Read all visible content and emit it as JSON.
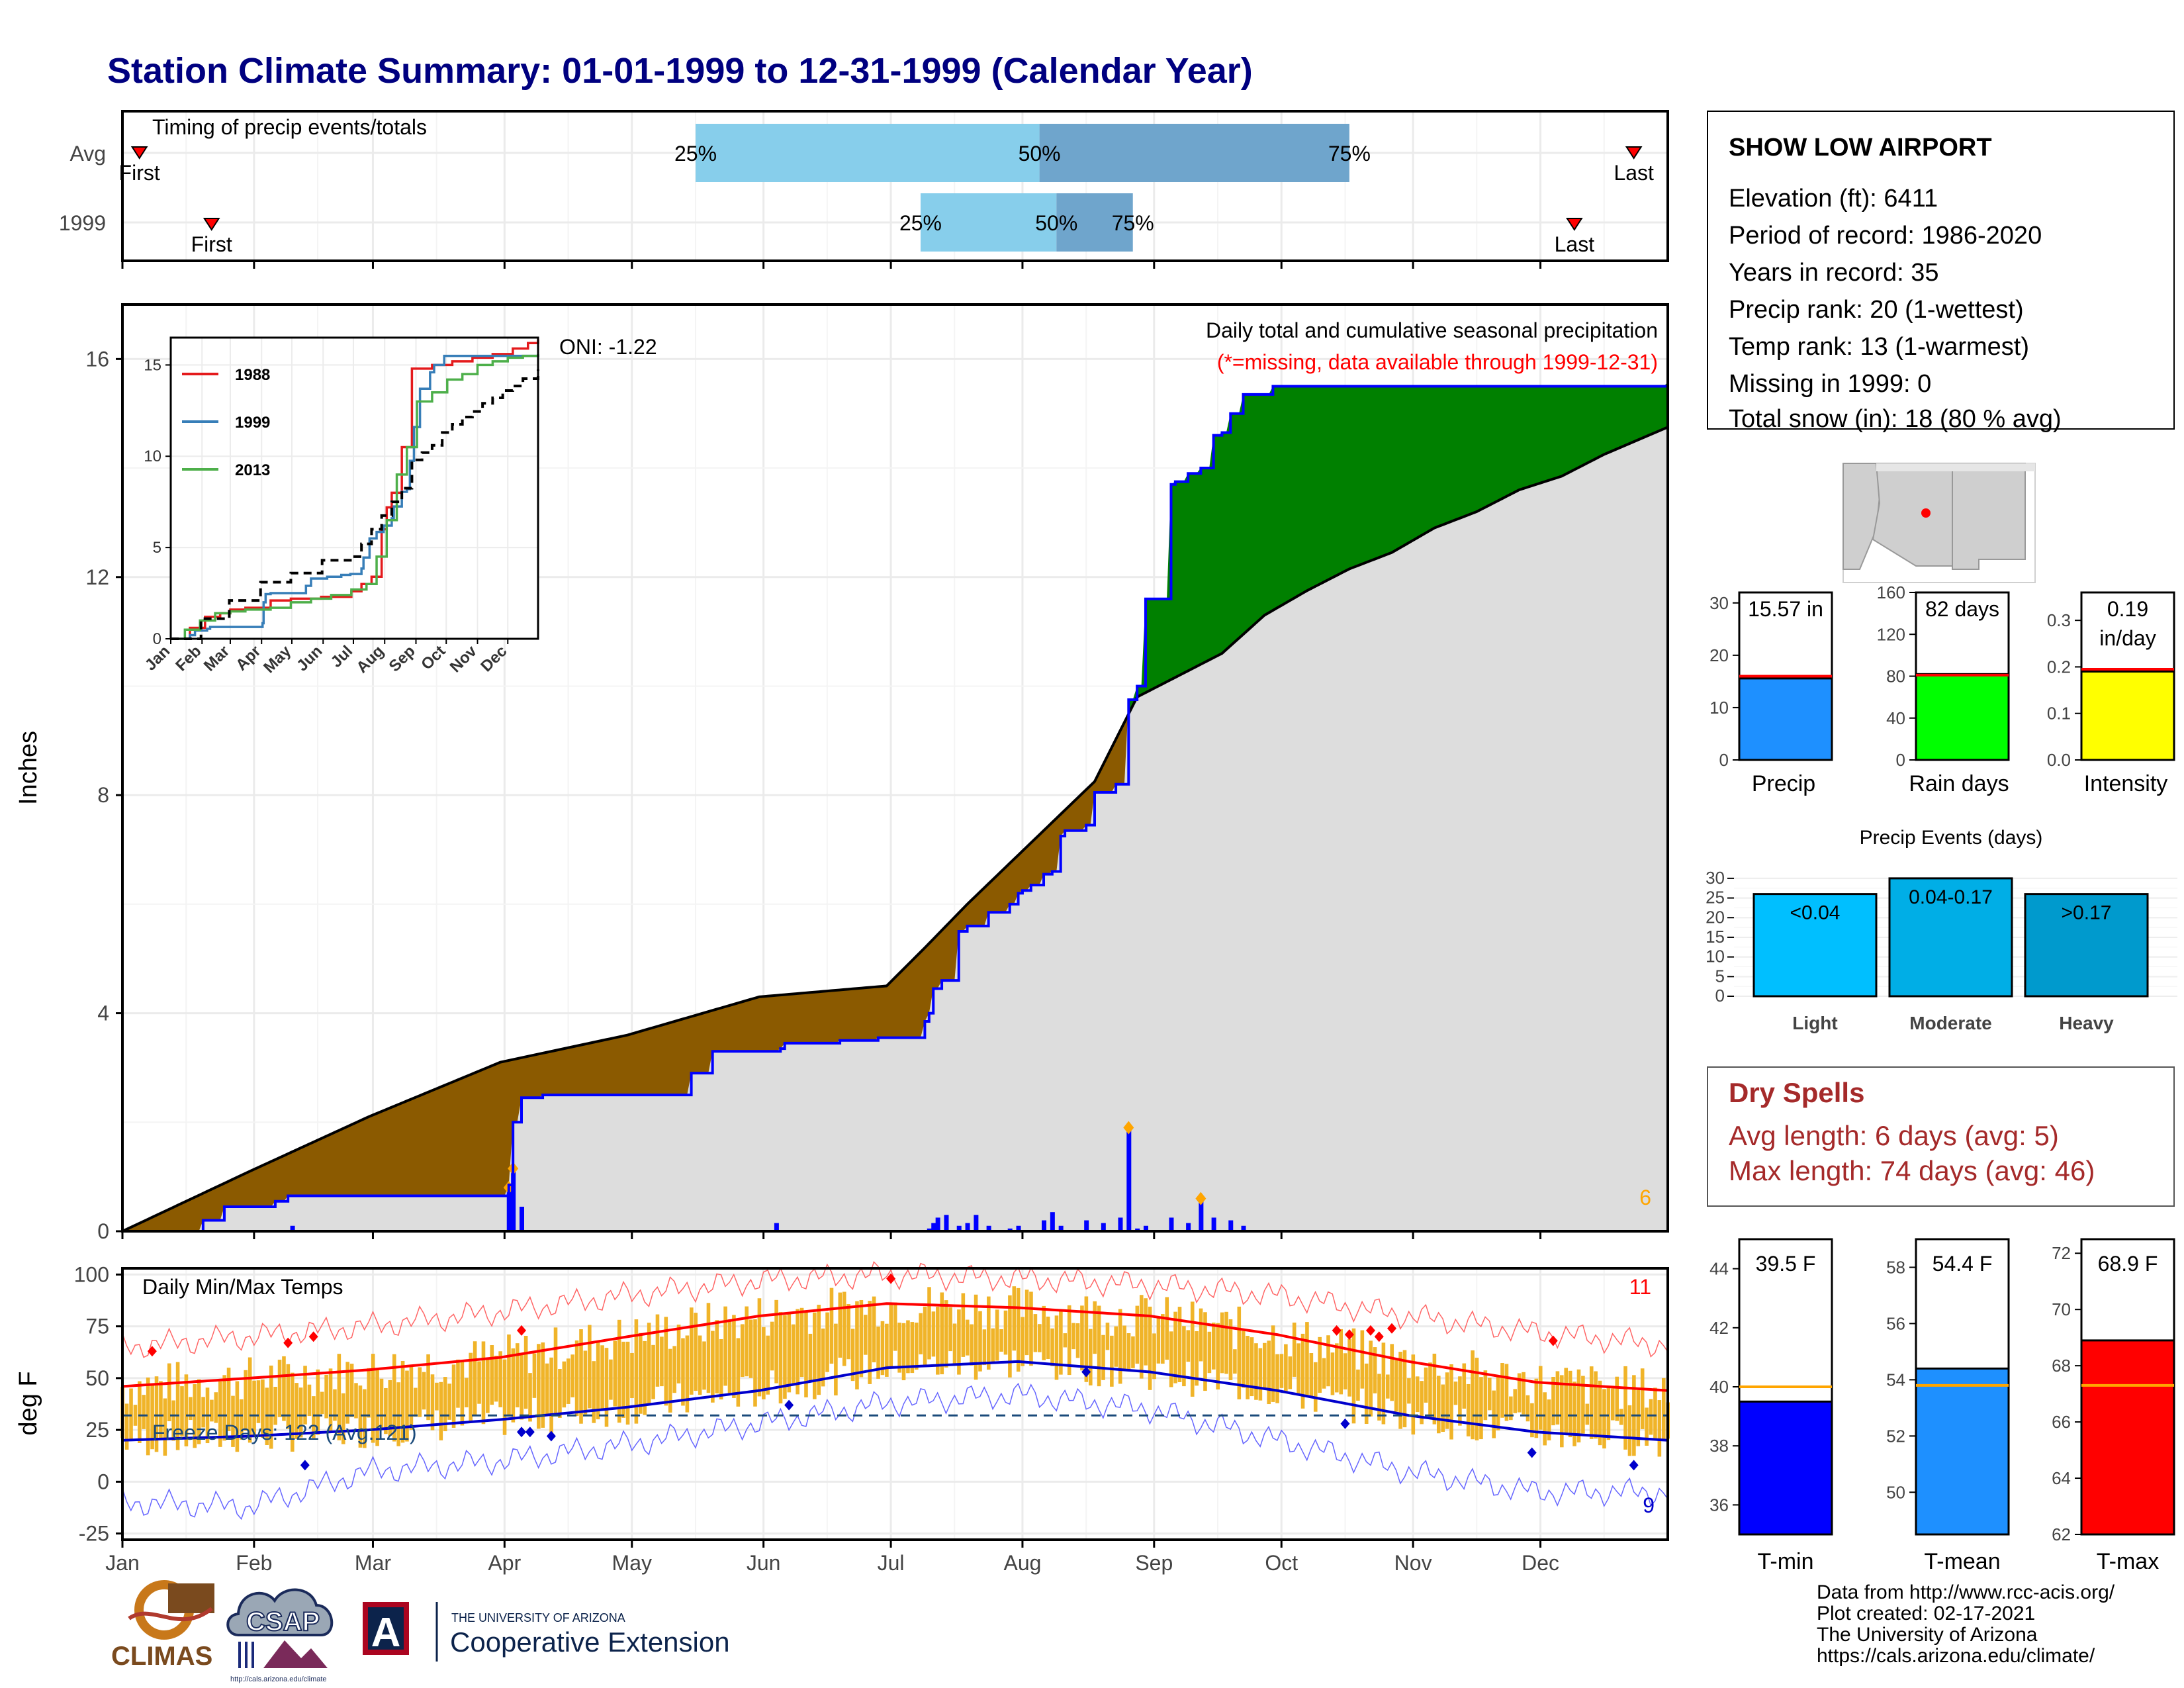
{
  "title": "Station Climate Summary: 01-01-1999 to 12-31-1999 (Calendar Year)",
  "months": [
    "Jan",
    "Feb",
    "Mar",
    "Apr",
    "May",
    "Jun",
    "Jul",
    "Aug",
    "Sep",
    "Oct",
    "Nov",
    "Dec"
  ],
  "timing": {
    "label": "Timing of precip events/totals",
    "rows": [
      {
        "label": "Avg",
        "first_doy": 5,
        "last_doy": 357,
        "p25_doy": 136,
        "p50_doy": 217,
        "p75_doy": 290,
        "first": "First",
        "last": "Last",
        "q25": "25%",
        "q50": "50%",
        "q75": "75%"
      },
      {
        "label": "1999",
        "first_doy": 22,
        "last_doy": 343,
        "p25_doy": 189,
        "p50_doy": 221,
        "p75_doy": 239,
        "first": "First",
        "last": "Last",
        "q25": "25%",
        "q50": "50%",
        "q75": "75%"
      }
    ]
  },
  "precip_panel": {
    "ylabel": "Inches",
    "yticks": [
      0,
      4,
      8,
      12,
      16
    ],
    "ylim": [
      0,
      17
    ],
    "title": "Daily total and cumulative seasonal precipitation",
    "subtitle": "(*=missing, data available through 1999-12-31)",
    "oni": "ONI: -1.22",
    "corner_count": "6",
    "colors": {
      "surplus": "#008000",
      "deficit": "#8B5A00",
      "normal": "#dddddd",
      "line": "#0000ff"
    }
  },
  "inset": {
    "legend": [
      "1988",
      "1999",
      "2013"
    ],
    "colors": [
      "#e41a1c",
      "#377eb8",
      "#4daf4a"
    ],
    "yticks": [
      0,
      5,
      10,
      15
    ],
    "ylim": [
      0,
      16.5
    ],
    "months": [
      "Jan",
      "Feb",
      "Mar",
      "Apr",
      "May",
      "Jun",
      "Jul",
      "Aug",
      "Sep",
      "Oct",
      "Nov",
      "Dec"
    ]
  },
  "chart_data": [
    {
      "type": "area",
      "title": "Daily total and cumulative seasonal precipitation",
      "ylabel": "Inches",
      "ylim": [
        0,
        17
      ],
      "x_unit": "day of year",
      "series": [
        {
          "name": "1999",
          "x": [
            1,
            20,
            25,
            37,
            40,
            92,
            93,
            95,
            100,
            135,
            140,
            156,
            157,
            170,
            175,
            179,
            190,
            191,
            192,
            194,
            198,
            200,
            205,
            210,
            212,
            213,
            215,
            218,
            220,
            222,
            223,
            228,
            230,
            235,
            238,
            240,
            242,
            248,
            249,
            252,
            255,
            258,
            260,
            262,
            265,
            272,
            365
          ],
          "values": [
            0,
            0.2,
            0.45,
            0.55,
            0.65,
            0.85,
            2.0,
            2.45,
            2.5,
            2.9,
            3.3,
            3.35,
            3.45,
            3.5,
            3.5,
            3.55,
            3.85,
            4.0,
            4.45,
            4.6,
            5.5,
            5.6,
            5.85,
            6.0,
            6.2,
            6.25,
            6.35,
            6.55,
            6.6,
            7.25,
            7.35,
            7.45,
            8.05,
            8.2,
            9.75,
            10.0,
            11.6,
            13.7,
            13.75,
            13.9,
            14.0,
            14.6,
            14.65,
            15.0,
            15.35,
            15.5,
            15.57
          ]
        },
        {
          "name": "Avg",
          "x": [
            1,
            31,
            59,
            90,
            120,
            151,
            181,
            190,
            200,
            210,
            220,
            230,
            240,
            250,
            260,
            270,
            280,
            290,
            300,
            310,
            320,
            330,
            340,
            350,
            365
          ],
          "values": [
            0,
            1.1,
            2.1,
            3.1,
            3.6,
            4.3,
            4.5,
            5.2,
            6.0,
            6.75,
            7.5,
            8.25,
            9.8,
            10.2,
            10.6,
            11.3,
            11.75,
            12.15,
            12.45,
            12.9,
            13.2,
            13.6,
            13.85,
            14.25,
            14.75
          ]
        },
        {
          "name": "daily",
          "x": [
            41,
            92,
            93,
            95,
            155,
            191,
            192,
            193,
            195,
            198,
            200,
            202,
            205,
            210,
            212,
            218,
            220,
            222,
            228,
            232,
            236,
            238,
            240,
            242,
            248,
            252,
            255,
            258,
            262,
            265
          ],
          "values": [
            0.1,
            0.8,
            1.15,
            0.45,
            0.15,
            0.05,
            0.15,
            0.25,
            0.3,
            0.1,
            0.15,
            0.3,
            0.1,
            0.05,
            0.1,
            0.2,
            0.35,
            0.1,
            0.2,
            0.15,
            0.25,
            1.9,
            0.05,
            0.1,
            0.25,
            0.15,
            0.6,
            0.25,
            0.2,
            0.1
          ]
        }
      ]
    },
    {
      "type": "line",
      "title": "",
      "ylim": [
        0,
        16.5
      ],
      "series": [
        {
          "name": "1988",
          "x": [
            1,
            20,
            35,
            50,
            60,
            75,
            100,
            120,
            150,
            180,
            190,
            200,
            210,
            215,
            220,
            230,
            240,
            260,
            280,
            300,
            320,
            340,
            355,
            365
          ],
          "values": [
            0,
            0.6,
            1.2,
            1.4,
            1.6,
            1.7,
            2.1,
            2.2,
            2.3,
            2.6,
            3.0,
            3.4,
            6.0,
            7.2,
            8.0,
            10.5,
            14.8,
            15.0,
            15.2,
            15.4,
            15.6,
            15.9,
            16.2,
            16.4
          ]
        },
        {
          "name": "1999",
          "x": [
            1,
            20,
            25,
            37,
            40,
            92,
            93,
            95,
            100,
            135,
            140,
            156,
            170,
            179,
            190,
            192,
            198,
            205,
            212,
            220,
            222,
            230,
            235,
            238,
            242,
            248,
            258,
            262,
            272,
            365
          ],
          "values": [
            0,
            0.2,
            0.45,
            0.55,
            0.65,
            0.85,
            2.0,
            2.45,
            2.5,
            2.9,
            3.3,
            3.4,
            3.5,
            3.55,
            3.85,
            4.45,
            5.5,
            5.85,
            6.2,
            6.6,
            7.25,
            8.05,
            8.2,
            9.75,
            11.6,
            13.7,
            14.6,
            15.0,
            15.5,
            15.57
          ]
        },
        {
          "name": "2013",
          "x": [
            1,
            15,
            30,
            45,
            60,
            75,
            100,
            120,
            140,
            160,
            180,
            195,
            205,
            215,
            225,
            235,
            245,
            260,
            275,
            290,
            305,
            320,
            335,
            350,
            365
          ],
          "values": [
            0,
            0.5,
            1.0,
            1.4,
            1.5,
            1.6,
            1.7,
            2.0,
            2.2,
            2.4,
            2.7,
            3.0,
            4.5,
            6.5,
            9.0,
            10.5,
            13.0,
            13.5,
            14.2,
            14.5,
            15.0,
            15.2,
            15.4,
            15.5,
            15.6
          ]
        },
        {
          "name": "Avg",
          "x": [
            1,
            31,
            59,
            90,
            120,
            151,
            181,
            190,
            200,
            210,
            220,
            230,
            240,
            250,
            260,
            270,
            280,
            290,
            300,
            310,
            320,
            330,
            340,
            350,
            365
          ],
          "values": [
            0,
            1.1,
            2.1,
            3.1,
            3.6,
            4.3,
            4.5,
            5.2,
            6.0,
            6.75,
            7.5,
            8.25,
            9.8,
            10.2,
            10.6,
            11.3,
            11.75,
            12.15,
            12.45,
            12.9,
            13.2,
            13.6,
            13.85,
            14.25,
            14.75
          ]
        }
      ]
    },
    {
      "type": "line",
      "title": "Daily Min/Max Temps",
      "ylabel": "deg F",
      "ylim": [
        -28,
        103
      ],
      "series": [
        {
          "name": "avg max",
          "x": [
            1,
            31,
            59,
            90,
            120,
            151,
            181,
            212,
            243,
            273,
            304,
            334,
            365
          ],
          "values": [
            46,
            50,
            54,
            60,
            70,
            80,
            86,
            84,
            80,
            71,
            58,
            48,
            44
          ]
        },
        {
          "name": "avg min",
          "x": [
            1,
            31,
            59,
            90,
            120,
            151,
            181,
            212,
            243,
            273,
            304,
            334,
            365
          ],
          "values": [
            20,
            22,
            25,
            30,
            36,
            44,
            55,
            58,
            53,
            44,
            32,
            24,
            20
          ]
        },
        {
          "name": "record max",
          "x": [
            1,
            31,
            59,
            90,
            120,
            151,
            181,
            212,
            243,
            273,
            304,
            334,
            365
          ],
          "values": [
            65,
            70,
            75,
            82,
            90,
            97,
            100,
            98,
            95,
            90,
            80,
            72,
            66
          ]
        },
        {
          "name": "record min",
          "x": [
            1,
            31,
            59,
            90,
            120,
            151,
            181,
            212,
            243,
            273,
            304,
            334,
            365
          ],
          "values": [
            -10,
            -12,
            5,
            10,
            18,
            28,
            38,
            42,
            35,
            20,
            5,
            -5,
            -5
          ]
        }
      ]
    },
    {
      "type": "bar",
      "categories": [
        "Precip",
        "Rain days",
        "Intensity"
      ],
      "values": [
        15.57,
        82,
        0.19
      ]
    },
    {
      "type": "bar",
      "title": "Precip Events (days)",
      "categories": [
        "Light",
        "Moderate",
        "Heavy"
      ],
      "values": [
        26,
        30,
        26
      ]
    },
    {
      "type": "bar",
      "categories": [
        "T-min",
        "T-mean",
        "T-max"
      ],
      "values": [
        39.5,
        54.4,
        68.9
      ]
    }
  ],
  "temp_panel": {
    "label": "Daily Min/Max Temps",
    "ylabel": "deg F",
    "yticks": [
      -25,
      0,
      25,
      50,
      75,
      100
    ],
    "freeze": "Freeze Days: 122 (Avg:121)",
    "count_hi": "11",
    "count_lo": "9",
    "freeze_line": 32
  },
  "station": {
    "name": "SHOW LOW AIRPORT",
    "lines": [
      "Elevation (ft): 6411",
      "Period of record: 1986-2020",
      "Years in record: 35",
      "Precip rank: 20 (1-wettest)",
      "Temp rank: 13 (1-warmest)",
      "Missing in 1999: 0",
      "Total snow (in): 18 (80 % avg)"
    ]
  },
  "summary_bars": [
    {
      "label": "Precip",
      "value": 15.57,
      "avg": 16.0,
      "text": "15.57 in",
      "ymax": 32,
      "ticks": [
        0,
        10,
        20,
        30
      ],
      "color": "#1e90ff"
    },
    {
      "label": "Rain days",
      "value": 82,
      "avg": 81,
      "text": "82 days",
      "ymax": 160,
      "ticks": [
        0,
        40,
        80,
        120,
        160
      ],
      "color": "#00ff00"
    },
    {
      "label": "Intensity",
      "value": 0.19,
      "avg": 0.195,
      "text": "0.19",
      "text2": "in/day",
      "ymax": 0.36,
      "ticks": [
        0.0,
        0.1,
        0.2,
        0.3
      ],
      "tick_labels": [
        "0.0",
        "0.1",
        "0.2",
        "0.3"
      ],
      "color": "#ffff00"
    }
  ],
  "events": {
    "title": "Precip Events (days)",
    "bars": [
      {
        "label": "Light",
        "text": "<0.04",
        "value": 26,
        "color": "#00bfff"
      },
      {
        "label": "Moderate",
        "text": "0.04-0.17",
        "value": 30,
        "color": "#00aee6"
      },
      {
        "label": "Heavy",
        "text": ">0.17",
        "value": 26,
        "color": "#009acd"
      }
    ],
    "ticks": [
      0,
      5,
      10,
      15,
      20,
      25,
      30
    ]
  },
  "dry_spells": {
    "title": "Dry Spells",
    "avg": "Avg length: 6 days (avg: 5)",
    "max": "Max length: 74 days (avg: 46)"
  },
  "temp_bars": [
    {
      "label": "T-min",
      "value": 39.5,
      "avg": 40.0,
      "text": "39.5 F",
      "ymin": 35,
      "ymax": 45,
      "ticks": [
        36,
        38,
        40,
        42,
        44
      ],
      "color": "#0000ff"
    },
    {
      "label": "T-mean",
      "value": 54.4,
      "avg": 53.8,
      "text": "54.4 F",
      "ymin": 48.5,
      "ymax": 59,
      "ticks": [
        50,
        52,
        54,
        56,
        58
      ],
      "color": "#1e90ff"
    },
    {
      "label": "T-max",
      "value": 68.9,
      "avg": 67.3,
      "text": "68.9 F",
      "ymin": 62,
      "ymax": 72.5,
      "ticks": [
        62,
        64,
        66,
        68,
        70,
        72
      ],
      "color": "#ff0000"
    }
  ],
  "footer": {
    "lines": [
      "Data from http://www.rcc-acis.org/",
      "Plot created: 02-17-2021",
      "The University of Arizona",
      "https://cals.arizona.edu/climate/"
    ]
  },
  "logos": {
    "climas": "CLIMAS",
    "csap": "CSAP",
    "csap_url": "http://cals.arizona.edu/climate",
    "ua_top": "THE UNIVERSITY OF ARIZONA",
    "ua_main": "Cooperative Extension",
    "ua_letter": "A"
  }
}
